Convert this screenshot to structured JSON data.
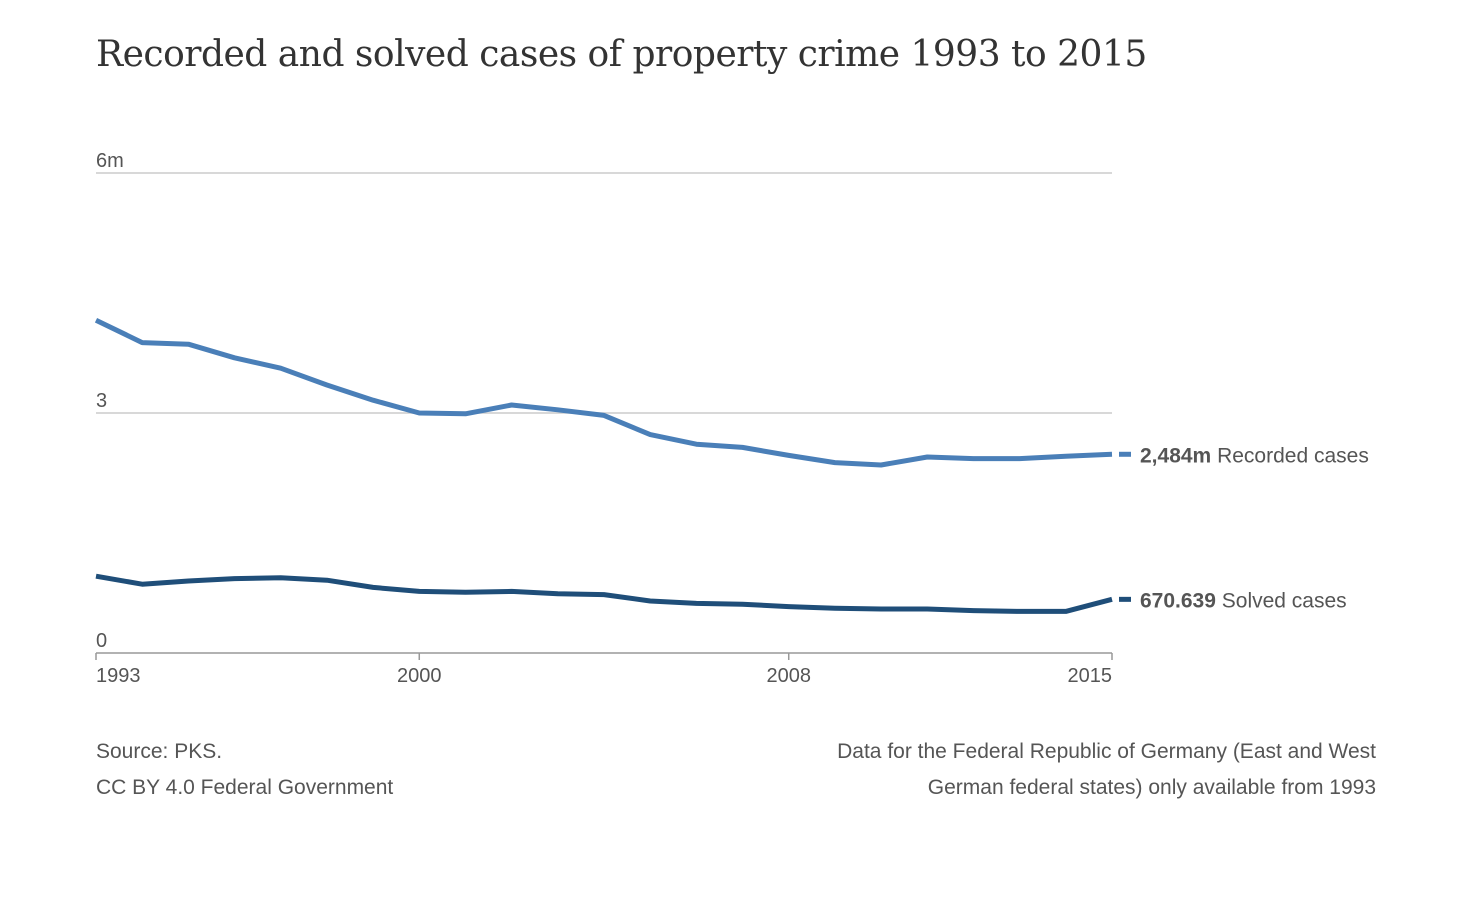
{
  "title": "Recorded and solved cases of property crime 1993 to 2015",
  "source": {
    "line1": "Source: PKS.",
    "line2": "CC BY 4.0 Federal Government"
  },
  "note": {
    "line1": "Data for the Federal Republic of Germany (East and West",
    "line2": "German federal states) only available from 1993"
  },
  "colors": {
    "recorded": "#4a7fb8",
    "solved": "#1f4e79",
    "grid": "#cccccc",
    "axis": "#999999"
  },
  "chart_data": {
    "type": "line",
    "title": "Recorded and solved cases of property crime 1993 to 2015",
    "x": [
      1993,
      1994,
      1995,
      1996,
      1997,
      1998,
      1999,
      2000,
      2001,
      2002,
      2003,
      2004,
      2005,
      2006,
      2007,
      2008,
      2009,
      2010,
      2011,
      2012,
      2013,
      2014,
      2015
    ],
    "xticks": [
      1993,
      2000,
      2008,
      2015
    ],
    "xtick_labels": [
      "1993",
      "2000",
      "2008",
      "2015"
    ],
    "xlim": [
      1993,
      2015
    ],
    "ylim": [
      0,
      6
    ],
    "yticks": [
      0,
      3,
      6
    ],
    "ytick_labels": [
      "0",
      "3",
      "6m"
    ],
    "grid": true,
    "series": [
      {
        "name": "Recorded cases",
        "end_label_value": "2,484m",
        "values": [
          4.16,
          3.88,
          3.86,
          3.69,
          3.56,
          3.35,
          3.16,
          3.0,
          2.99,
          3.1,
          3.04,
          2.97,
          2.73,
          2.61,
          2.57,
          2.47,
          2.38,
          2.35,
          2.45,
          2.43,
          2.43,
          2.46,
          2.484
        ]
      },
      {
        "name": "Solved cases",
        "end_label_value": "670.639",
        "values": [
          0.96,
          0.86,
          0.9,
          0.93,
          0.94,
          0.91,
          0.82,
          0.77,
          0.76,
          0.77,
          0.74,
          0.73,
          0.65,
          0.62,
          0.61,
          0.58,
          0.56,
          0.55,
          0.55,
          0.53,
          0.52,
          0.52,
          0.670639
        ]
      }
    ]
  }
}
